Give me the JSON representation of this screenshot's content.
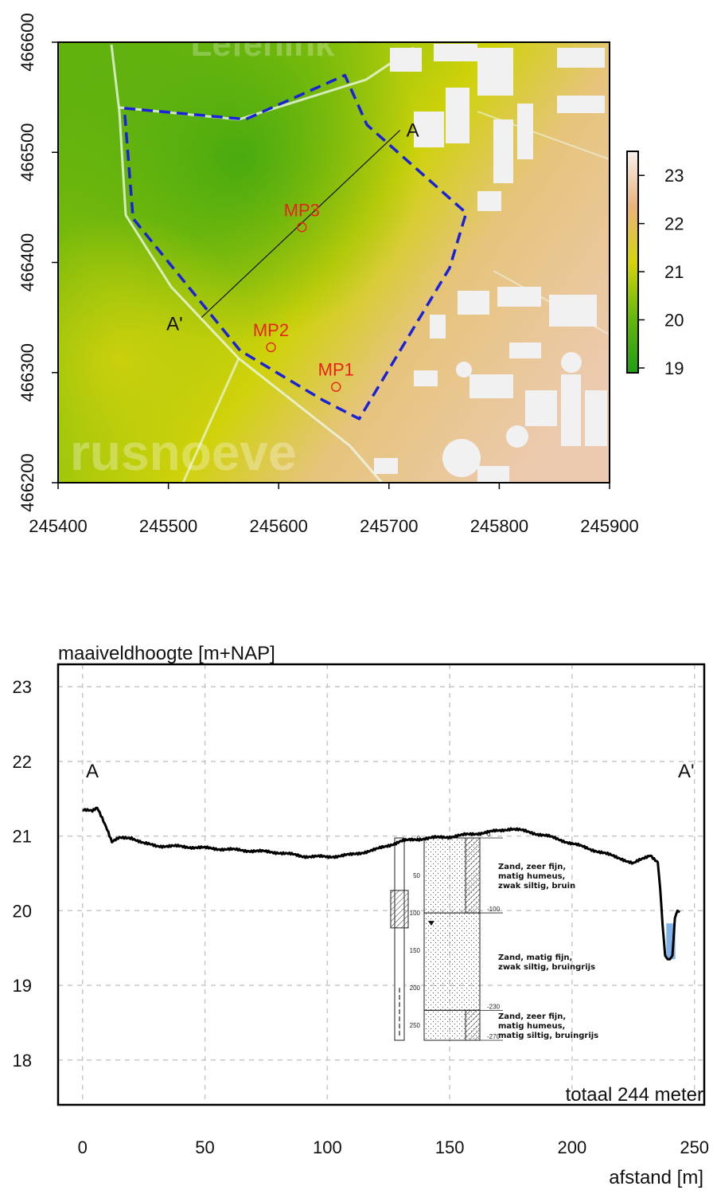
{
  "chart_data": [
    {
      "type": "heatmap",
      "xlim": [
        245400,
        245900
      ],
      "ylim": [
        466200,
        466600
      ],
      "x_ticks": [
        "245400",
        "245500",
        "245600",
        "245700",
        "245800",
        "245900"
      ],
      "y_ticks": [
        "466200",
        "466300",
        "466400",
        "466500",
        "466600"
      ],
      "colorbar": {
        "ticks": [
          "19",
          "20",
          "21",
          "22",
          "23"
        ],
        "range": [
          18.9,
          23.5
        ],
        "colors": [
          "#1f9e14",
          "#66b80c",
          "#d6d40a",
          "#e9b27a",
          "#f6f1ee"
        ]
      },
      "watermark_top": "Lefenink",
      "watermark_bottom": "rusnoeve",
      "boundary": [
        [
          245460,
          466540
        ],
        [
          245570,
          466530
        ],
        [
          245660,
          466570
        ],
        [
          245680,
          466525
        ],
        [
          245770,
          466445
        ],
        [
          245755,
          466395
        ],
        [
          245673,
          466258
        ],
        [
          245640,
          466275
        ],
        [
          245565,
          466320
        ],
        [
          245468,
          466440
        ],
        [
          245460,
          466540
        ]
      ],
      "transect": {
        "start": [
          245710,
          466520
        ],
        "end": [
          245530,
          466350
        ],
        "start_label": "A",
        "end_label": "A'"
      },
      "points": [
        {
          "label": "MP3",
          "x": 245621,
          "y": 466432
        },
        {
          "label": "MP2",
          "x": 245593,
          "y": 466323
        },
        {
          "label": "MP1",
          "x": 245652,
          "y": 466287
        }
      ]
    },
    {
      "type": "line",
      "ylabel": "maaiveldhoogte [m+NAP]",
      "xlabel": "afstand [m]",
      "xlim": [
        -10,
        254
      ],
      "ylim": [
        17.4,
        23.3
      ],
      "x_ticks": [
        "0",
        "50",
        "100",
        "150",
        "200",
        "250"
      ],
      "y_ticks": [
        "18",
        "19",
        "20",
        "21",
        "22",
        "23"
      ],
      "grid": true,
      "annotation": "totaal 244 meter",
      "left_label": "A",
      "right_label": "A'",
      "profile": {
        "x": [
          0,
          4,
          6,
          8,
          10,
          12,
          15,
          20,
          25,
          30,
          40,
          50,
          60,
          70,
          80,
          90,
          100,
          110,
          120,
          130,
          140,
          150,
          160,
          170,
          175,
          180,
          190,
          200,
          210,
          220,
          225,
          228,
          232,
          235,
          236,
          237,
          238,
          239,
          240,
          241,
          242,
          243,
          244
        ],
        "y": [
          21.35,
          21.33,
          21.38,
          21.25,
          21.1,
          20.92,
          20.97,
          20.98,
          20.9,
          20.87,
          20.86,
          20.84,
          20.82,
          20.8,
          20.78,
          20.73,
          20.72,
          20.75,
          20.82,
          20.93,
          20.97,
          20.99,
          21.03,
          21.07,
          21.1,
          21.07,
          21.0,
          20.9,
          20.8,
          20.7,
          20.63,
          20.68,
          20.75,
          20.65,
          20.3,
          19.8,
          19.4,
          19.35,
          19.35,
          19.4,
          19.9,
          20.0,
          19.98
        ]
      },
      "water": {
        "x0": 238.5,
        "x1": 242.2,
        "ytop": 19.83,
        "ybottom": 19.35
      },
      "borehole": {
        "depth_ticks": [
          "0",
          "50",
          "100",
          "150",
          "200",
          "250"
        ],
        "layer_depths": [
          "0",
          "-100",
          "-230",
          "-270"
        ],
        "layers": [
          {
            "top": 0,
            "bottom": 100,
            "lines": [
              "Zand, zeer fijn,",
              "matig humeus,",
              "zwak siltig, bruin"
            ]
          },
          {
            "top": 100,
            "bottom": 230,
            "lines": [
              "Zand, matig fijn,",
              "zwak siltig, bruingrijs"
            ]
          },
          {
            "top": 230,
            "bottom": 270,
            "lines": [
              "Zand, zeer fijn,",
              "matig humeus,",
              "matig siltig, bruingrijs"
            ]
          }
        ]
      }
    }
  ]
}
